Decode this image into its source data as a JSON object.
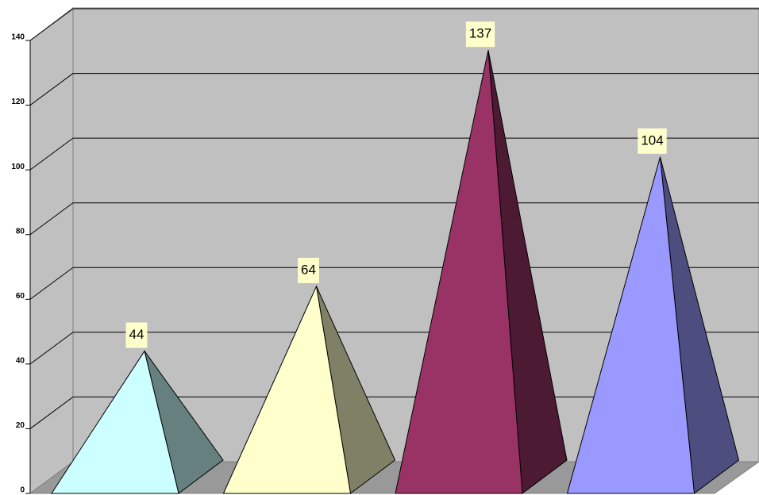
{
  "chart_data": {
    "type": "pyramid",
    "categories": [
      null,
      null,
      null,
      null
    ],
    "values": [
      44,
      64,
      137,
      104
    ],
    "colors": [
      "#ccffff",
      "#ffffcc",
      "#993366",
      "#9999ff"
    ],
    "ylim": [
      0,
      140
    ],
    "yticks": [
      0,
      20,
      40,
      60,
      80,
      100,
      120,
      140
    ],
    "grid": true
  }
}
